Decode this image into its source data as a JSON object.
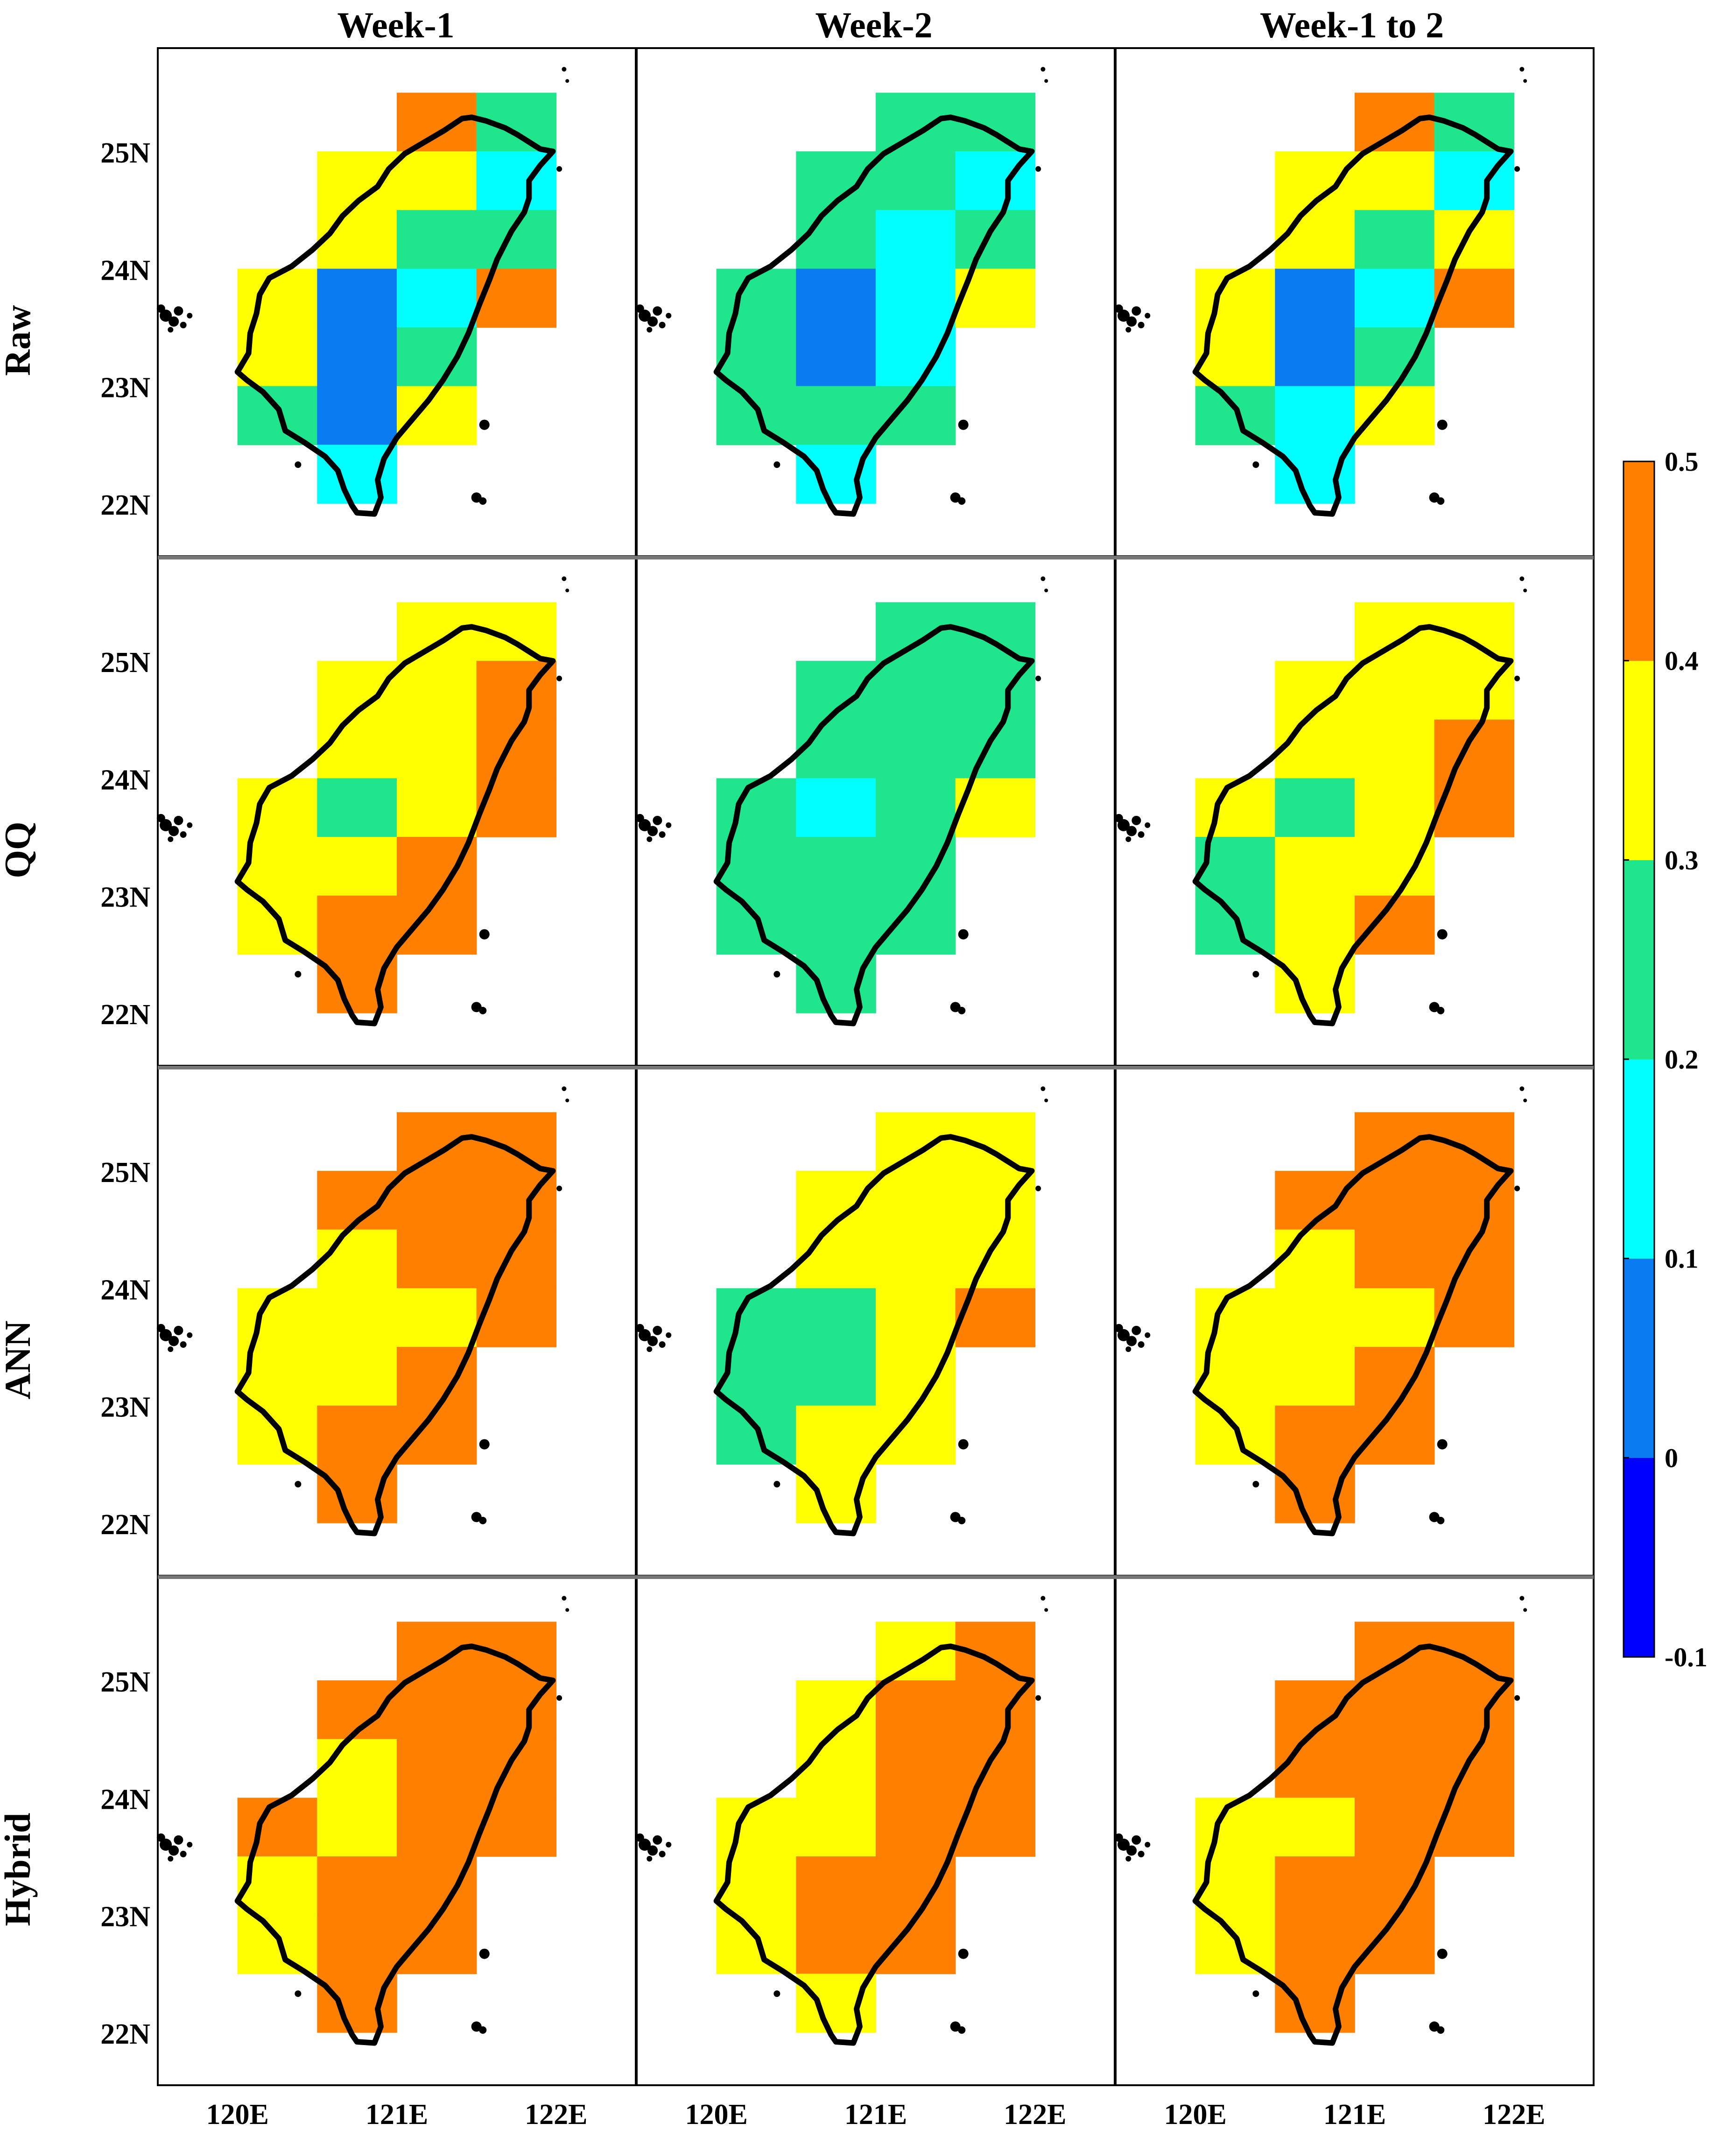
{
  "columns": [
    "Week-1",
    "Week-2",
    "Week-1 to 2"
  ],
  "rows": [
    "Raw",
    "QQ",
    "ANN",
    "Hybrid"
  ],
  "lat_ticks": [
    "22N",
    "23N",
    "24N",
    "25N"
  ],
  "lon_ticks": [
    "120E",
    "121E",
    "122E"
  ],
  "colorbar": {
    "labels": [
      "-0.1",
      "0",
      "0.1",
      "0.2",
      "0.3",
      "0.4",
      "0.5"
    ],
    "colors": [
      "#0000ff",
      "#0a7bf0",
      "#00ffff",
      "#1fe68c",
      "#ffff00",
      "#ff7f00"
    ]
  },
  "grid_spec": {
    "lon_cells": [
      120.0,
      120.5,
      121.0,
      121.5
    ],
    "lat_cells": [
      25.0,
      24.5,
      24.0,
      23.5,
      23.0,
      22.5,
      22.0
    ],
    "cell_size_deg": 0.5
  },
  "panels": [
    [
      [
        [
          -1,
          -1,
          5,
          3
        ],
        [
          -1,
          4,
          4,
          2
        ],
        [
          -1,
          4,
          3,
          3
        ],
        [
          4,
          1,
          2,
          5
        ],
        [
          4,
          1,
          3,
          -1
        ],
        [
          3,
          1,
          4,
          -1
        ],
        [
          -1,
          2,
          -1,
          -1
        ]
      ],
      [
        [
          -1,
          -1,
          3,
          3
        ],
        [
          -1,
          3,
          3,
          2
        ],
        [
          -1,
          3,
          2,
          3
        ],
        [
          3,
          1,
          2,
          4
        ],
        [
          3,
          1,
          2,
          -1
        ],
        [
          3,
          3,
          3,
          -1
        ],
        [
          -1,
          2,
          -1,
          -1
        ]
      ],
      [
        [
          -1,
          -1,
          5,
          3
        ],
        [
          -1,
          4,
          4,
          2
        ],
        [
          -1,
          4,
          3,
          4
        ],
        [
          4,
          1,
          2,
          5
        ],
        [
          4,
          1,
          3,
          -1
        ],
        [
          3,
          2,
          4,
          -1
        ],
        [
          -1,
          2,
          -1,
          -1
        ]
      ]
    ],
    [
      [
        [
          -1,
          -1,
          4,
          4
        ],
        [
          -1,
          4,
          4,
          5
        ],
        [
          -1,
          4,
          4,
          5
        ],
        [
          4,
          3,
          4,
          5
        ],
        [
          4,
          4,
          5,
          -1
        ],
        [
          4,
          5,
          5,
          -1
        ],
        [
          -1,
          5,
          -1,
          -1
        ]
      ],
      [
        [
          -1,
          -1,
          3,
          3
        ],
        [
          -1,
          3,
          3,
          3
        ],
        [
          -1,
          3,
          3,
          3
        ],
        [
          3,
          2,
          3,
          4
        ],
        [
          3,
          3,
          3,
          -1
        ],
        [
          3,
          3,
          3,
          -1
        ],
        [
          -1,
          3,
          -1,
          -1
        ]
      ],
      [
        [
          -1,
          -1,
          4,
          4
        ],
        [
          -1,
          4,
          4,
          4
        ],
        [
          -1,
          4,
          4,
          5
        ],
        [
          4,
          3,
          4,
          5
        ],
        [
          3,
          4,
          4,
          -1
        ],
        [
          3,
          4,
          5,
          -1
        ],
        [
          -1,
          4,
          -1,
          -1
        ]
      ]
    ],
    [
      [
        [
          -1,
          -1,
          5,
          5
        ],
        [
          -1,
          5,
          5,
          5
        ],
        [
          -1,
          4,
          5,
          5
        ],
        [
          4,
          4,
          4,
          5
        ],
        [
          4,
          4,
          5,
          -1
        ],
        [
          4,
          5,
          5,
          -1
        ],
        [
          -1,
          5,
          -1,
          -1
        ]
      ],
      [
        [
          -1,
          -1,
          4,
          4
        ],
        [
          -1,
          4,
          4,
          4
        ],
        [
          -1,
          4,
          4,
          4
        ],
        [
          3,
          3,
          4,
          5
        ],
        [
          3,
          3,
          4,
          -1
        ],
        [
          3,
          4,
          4,
          -1
        ],
        [
          -1,
          4,
          -1,
          -1
        ]
      ],
      [
        [
          -1,
          -1,
          5,
          5
        ],
        [
          -1,
          5,
          5,
          5
        ],
        [
          -1,
          4,
          5,
          5
        ],
        [
          4,
          4,
          4,
          5
        ],
        [
          4,
          4,
          5,
          -1
        ],
        [
          4,
          5,
          5,
          -1
        ],
        [
          -1,
          5,
          -1,
          -1
        ]
      ]
    ],
    [
      [
        [
          -1,
          -1,
          5,
          5
        ],
        [
          -1,
          5,
          5,
          5
        ],
        [
          -1,
          4,
          5,
          5
        ],
        [
          5,
          4,
          5,
          5
        ],
        [
          4,
          5,
          5,
          -1
        ],
        [
          4,
          5,
          5,
          -1
        ],
        [
          -1,
          5,
          -1,
          -1
        ]
      ],
      [
        [
          -1,
          -1,
          4,
          5
        ],
        [
          -1,
          4,
          5,
          5
        ],
        [
          -1,
          4,
          5,
          5
        ],
        [
          4,
          4,
          5,
          5
        ],
        [
          4,
          5,
          5,
          -1
        ],
        [
          4,
          5,
          5,
          -1
        ],
        [
          -1,
          4,
          -1,
          -1
        ]
      ],
      [
        [
          -1,
          -1,
          5,
          5
        ],
        [
          -1,
          5,
          5,
          5
        ],
        [
          -1,
          5,
          5,
          5
        ],
        [
          4,
          4,
          5,
          5
        ],
        [
          4,
          5,
          5,
          -1
        ],
        [
          4,
          5,
          5,
          -1
        ],
        [
          -1,
          5,
          -1,
          -1
        ]
      ]
    ]
  ]
}
